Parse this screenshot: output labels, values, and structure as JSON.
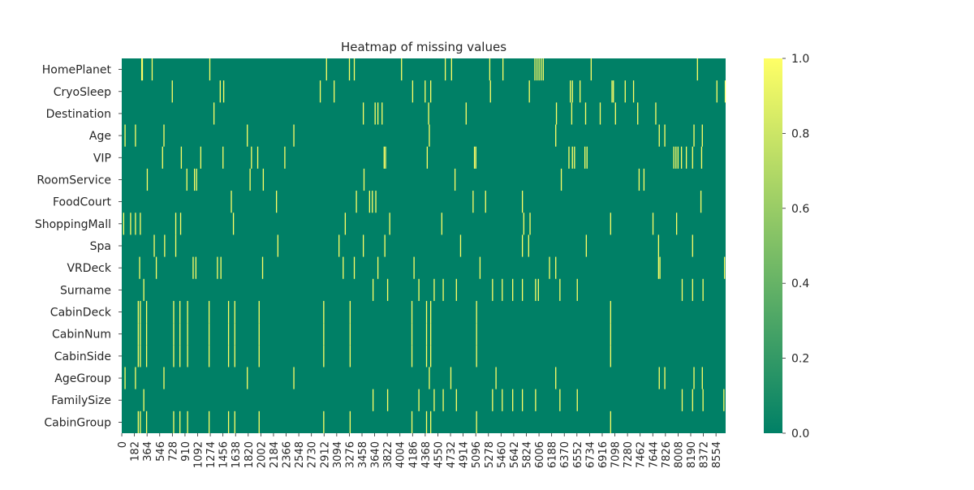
{
  "chart_data": {
    "type": "heatmap",
    "title": "Heatmap of missing values",
    "xlabel": "",
    "ylabel": "",
    "colormap": "summer",
    "color_min": "#008066",
    "color_max": "#FFFF66",
    "rows": [
      "HomePlanet",
      "CryoSleep",
      "Destination",
      "Age",
      "VIP",
      "RoomService",
      "FoodCourt",
      "ShoppingMall",
      "Spa",
      "VRDeck",
      "Surname",
      "CabinDeck",
      "CabinNum",
      "CabinSide",
      "AgeGroup",
      "FamilySize",
      "CabinGroup"
    ],
    "n_columns": 8693,
    "x_tick_labels": [
      "0",
      "182",
      "364",
      "546",
      "728",
      "910",
      "1092",
      "1274",
      "1456",
      "1638",
      "1820",
      "2002",
      "2184",
      "2366",
      "2548",
      "2730",
      "2912",
      "3094",
      "3276",
      "3458",
      "3640",
      "3822",
      "4004",
      "4186",
      "4368",
      "4550",
      "4732",
      "4914",
      "5096",
      "5278",
      "5460",
      "5642",
      "5824",
      "6006",
      "6188",
      "6370",
      "6552",
      "6734",
      "6916",
      "7098",
      "7280",
      "7462",
      "7644",
      "7826",
      "8008",
      "8190",
      "8372",
      "8554"
    ],
    "colorbar_ticks": [
      "0.0",
      "0.2",
      "0.4",
      "0.6",
      "0.8",
      "1.0"
    ],
    "value_range": [
      0,
      1
    ],
    "missing_positions": {
      "HomePlanet": [
        280,
        290,
        430,
        1260,
        2940,
        3270,
        3340,
        4020,
        4650,
        4740,
        5290,
        5480,
        5940,
        5970,
        6000,
        6030,
        6060,
        6750,
        8280
      ],
      "CryoSleep": [
        720,
        1410,
        1460,
        2850,
        3050,
        4180,
        4360,
        4440,
        5300,
        5860,
        6450,
        6480,
        6590,
        7050,
        7070,
        7240,
        7360,
        8560,
        8680
      ],
      "Destination": [
        1320,
        3470,
        3640,
        3680,
        3740,
        4410,
        4950,
        6250,
        6470,
        6670,
        6880,
        7100,
        7420,
        7680
      ],
      "Age": [
        40,
        190,
        600,
        1800,
        2470,
        4420,
        6240,
        7730,
        7810,
        8230,
        8350
      ],
      "VIP": [
        580,
        850,
        1130,
        1450,
        1860,
        1950,
        2340,
        3770,
        3790,
        4390,
        5070,
        5090,
        6430,
        6480,
        6510,
        6660,
        6690,
        7940,
        7970,
        8000,
        8050,
        8120,
        8210,
        8340
      ],
      "RoomService": [
        360,
        930,
        1040,
        1070,
        1840,
        2030,
        3480,
        4790,
        6320,
        7440,
        7510
      ],
      "FoodCourt": [
        1570,
        2220,
        3370,
        3560,
        3600,
        3650,
        5050,
        5230,
        5760,
        8330
      ],
      "ShoppingMall": [
        20,
        120,
        190,
        260,
        770,
        840,
        1600,
        3210,
        3850,
        4600,
        5780,
        5870,
        7030,
        7640,
        7980
      ],
      "Spa": [
        460,
        610,
        770,
        2240,
        3120,
        3470,
        3780,
        4870,
        5760,
        5850,
        6680,
        7720,
        8210
      ],
      "VRDeck": [
        250,
        490,
        1020,
        1060,
        1370,
        1420,
        2020,
        3180,
        3340,
        3680,
        4200,
        5150,
        6150,
        6240,
        7720,
        7740,
        8670
      ],
      "Surname": [
        310,
        3610,
        3820,
        4270,
        4490,
        4620,
        4810,
        5330,
        5470,
        5620,
        5760,
        5950,
        5990,
        6300,
        6550,
        8060,
        8210,
        8360
      ],
      "CabinDeck": [
        230,
        260,
        350,
        740,
        830,
        940,
        1250,
        1530,
        1620,
        1970,
        2900,
        3280,
        4170,
        4380,
        4440,
        5100,
        7030
      ],
      "CabinNum": [
        230,
        260,
        350,
        740,
        830,
        940,
        1250,
        1530,
        1620,
        1970,
        2900,
        3280,
        4170,
        4380,
        4440,
        5100,
        7030
      ],
      "CabinSide": [
        230,
        260,
        350,
        740,
        830,
        940,
        1250,
        1530,
        1620,
        1970,
        2900,
        3280,
        4170,
        4380,
        4440,
        5100,
        7030
      ],
      "AgeGroup": [
        40,
        190,
        600,
        1800,
        2470,
        4420,
        4730,
        5380,
        6240,
        7730,
        7810,
        8230,
        8350
      ],
      "FamilySize": [
        310,
        3610,
        3820,
        4270,
        4490,
        4620,
        4810,
        5330,
        5470,
        5620,
        5760,
        5950,
        6300,
        6550,
        8060,
        8210,
        8360,
        8660
      ],
      "CabinGroup": [
        230,
        260,
        350,
        740,
        830,
        940,
        1250,
        1530,
        1620,
        1970,
        2900,
        3280,
        4170,
        4380,
        4440,
        5100,
        7030
      ]
    },
    "grid": false,
    "legend": "none",
    "colorbar_position": "right"
  }
}
